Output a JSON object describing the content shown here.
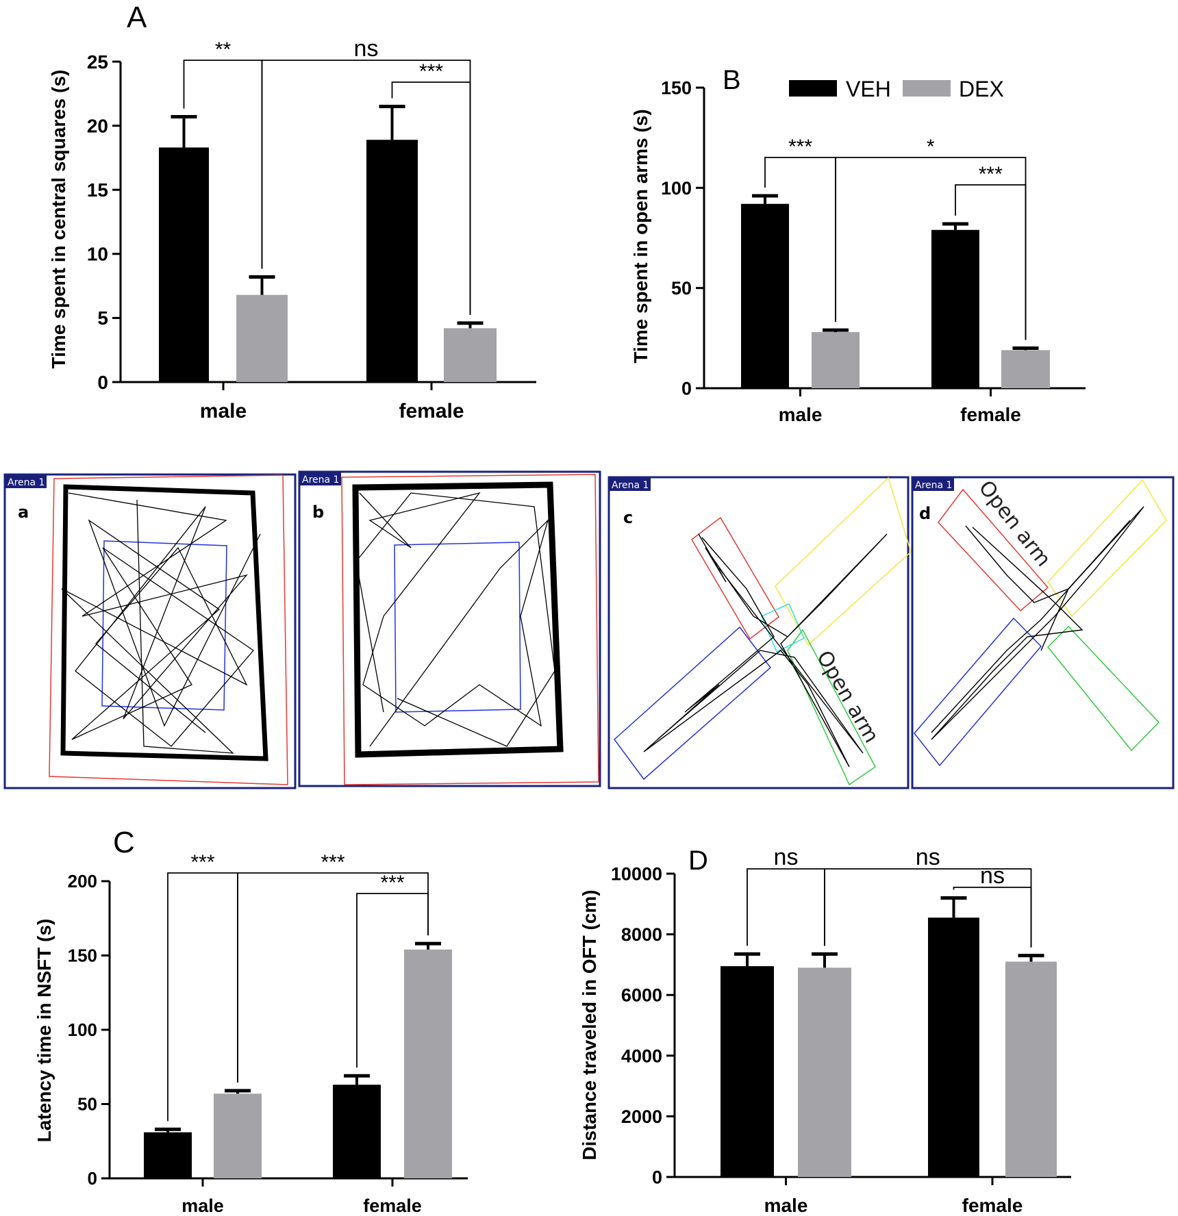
{
  "colors": {
    "veh": "#000000",
    "dex": "#a3a3a8",
    "frame": "#1a237e",
    "red": "#e53935",
    "blue": "#2233dd",
    "yellow": "#f5e642",
    "green": "#2ecc40",
    "cyan": "#33dddd"
  },
  "legend": {
    "veh": "VEH",
    "dex": "DEX"
  },
  "chart_data": [
    {
      "panel": "A",
      "type": "bar",
      "title": "A",
      "ylabel": "Time spent in central squares (s)",
      "xlabel": "",
      "categories": [
        "male",
        "female"
      ],
      "ylim": [
        0,
        25
      ],
      "yticks": [
        0,
        5,
        10,
        15,
        20,
        25
      ],
      "series": [
        {
          "name": "VEH",
          "values": [
            18.3,
            18.9
          ],
          "errors": [
            2.4,
            2.6
          ]
        },
        {
          "name": "DEX",
          "values": [
            6.8,
            4.2
          ],
          "errors": [
            1.4,
            0.4
          ]
        }
      ],
      "annotations": [
        {
          "label": "**",
          "from": [
            0,
            0
          ],
          "to": [
            0,
            1
          ]
        },
        {
          "label": "***",
          "from": [
            1,
            0
          ],
          "to": [
            1,
            1
          ]
        },
        {
          "label": "ns",
          "from": [
            0,
            1
          ],
          "to": [
            1,
            1
          ]
        }
      ]
    },
    {
      "panel": "B",
      "type": "bar",
      "title": "B",
      "ylabel": "Time spent in open arms (s)",
      "xlabel": "",
      "categories": [
        "male",
        "female"
      ],
      "ylim": [
        0,
        150
      ],
      "yticks": [
        0,
        50,
        100,
        150
      ],
      "series": [
        {
          "name": "VEH",
          "values": [
            92,
            79
          ],
          "errors": [
            4,
            3
          ]
        },
        {
          "name": "DEX",
          "values": [
            28,
            19
          ],
          "errors": [
            1,
            1
          ]
        }
      ],
      "annotations": [
        {
          "label": "***",
          "from": [
            0,
            0
          ],
          "to": [
            0,
            1
          ]
        },
        {
          "label": "***",
          "from": [
            1,
            0
          ],
          "to": [
            1,
            1
          ]
        },
        {
          "label": "*",
          "from": [
            0,
            1
          ],
          "to": [
            1,
            1
          ]
        }
      ]
    },
    {
      "panel": "C",
      "type": "bar",
      "title": "C",
      "ylabel": "Latency time in NSFT (s)",
      "xlabel": "",
      "categories": [
        "male",
        "female"
      ],
      "ylim": [
        0,
        200
      ],
      "yticks": [
        0,
        50,
        100,
        150,
        200
      ],
      "series": [
        {
          "name": "VEH",
          "values": [
            31,
            63
          ],
          "errors": [
            2,
            6
          ]
        },
        {
          "name": "DEX",
          "values": [
            57,
            154
          ],
          "errors": [
            2,
            4
          ]
        }
      ],
      "annotations": [
        {
          "label": "***",
          "from": [
            0,
            0
          ],
          "to": [
            0,
            1
          ]
        },
        {
          "label": "***",
          "from": [
            1,
            0
          ],
          "to": [
            1,
            1
          ]
        },
        {
          "label": "***",
          "from": [
            0,
            1
          ],
          "to": [
            1,
            1
          ]
        }
      ]
    },
    {
      "panel": "D",
      "type": "bar",
      "title": "D",
      "ylabel": "Distance traveled in OFT (cm)",
      "xlabel": "",
      "categories": [
        "male",
        "female"
      ],
      "ylim": [
        0,
        10000
      ],
      "yticks": [
        0,
        2000,
        4000,
        6000,
        8000,
        10000
      ],
      "series": [
        {
          "name": "VEH",
          "values": [
            6950,
            8550
          ],
          "errors": [
            400,
            650
          ]
        },
        {
          "name": "DEX",
          "values": [
            6900,
            7100
          ],
          "errors": [
            450,
            200
          ]
        }
      ],
      "annotations": [
        {
          "label": "ns",
          "from": [
            0,
            0
          ],
          "to": [
            0,
            1
          ]
        },
        {
          "label": "ns",
          "from": [
            1,
            0
          ],
          "to": [
            1,
            1
          ]
        },
        {
          "label": "ns",
          "from": [
            0,
            1
          ],
          "to": [
            1,
            1
          ]
        }
      ]
    }
  ],
  "track_panels": [
    {
      "tag": "Arena 1",
      "letter": "a"
    },
    {
      "tag": "Arena 1",
      "letter": "b"
    },
    {
      "tag": "Arena 1",
      "letter": "c",
      "label": "Open arm"
    },
    {
      "tag": "Arena 1",
      "letter": "d",
      "label": "Open arm"
    }
  ]
}
